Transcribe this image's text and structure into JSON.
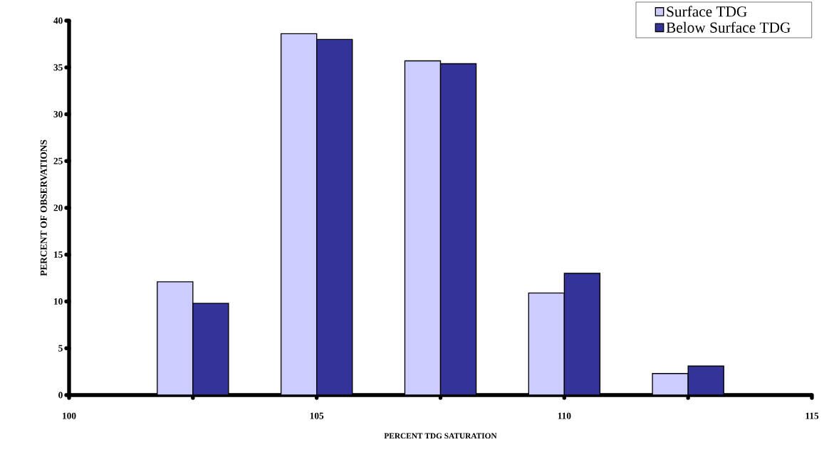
{
  "chart_data": {
    "type": "bar",
    "xlabel": "PERCENT TDG SATURATION",
    "ylabel": "PERCENT OF OBSERVATIONS",
    "x": [
      102.5,
      105,
      107.5,
      110,
      112.5
    ],
    "series": [
      {
        "name": "Surface TDG",
        "color": "#ccccff",
        "values": [
          12.1,
          38.6,
          35.7,
          10.9,
          2.3
        ]
      },
      {
        "name": "Below Surface TDG",
        "color": "#333399",
        "values": [
          9.8,
          38.0,
          35.4,
          13.0,
          3.1
        ]
      }
    ],
    "xlim": [
      100,
      115
    ],
    "xticks": [
      100,
      {
        "value": 102.5,
        "label": null
      },
      105,
      {
        "value": 107.5,
        "label": null
      },
      110,
      {
        "value": 112.5,
        "label": null
      },
      115
    ],
    "ylim": [
      0,
      40
    ],
    "yticks": [
      0,
      5,
      10,
      15,
      20,
      25,
      30,
      35,
      40
    ],
    "grid": false,
    "legend": "top right"
  }
}
